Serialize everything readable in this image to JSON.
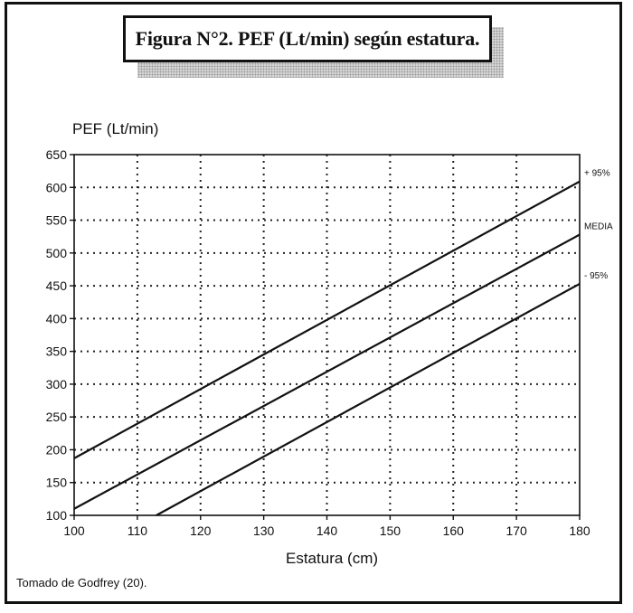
{
  "title": "Figura N°2. PEF (Lt/min) según estatura.",
  "source_note": "Tomado de Godfrey (20).",
  "chart_data": {
    "type": "line",
    "title": "Figura N°2. PEF (Lt/min) según estatura.",
    "xlabel": "Estatura (cm)",
    "ylabel": "PEF (Lt/min)",
    "xlim": [
      100,
      180
    ],
    "ylim": [
      100,
      650
    ],
    "x_ticks": [
      100,
      110,
      120,
      130,
      140,
      150,
      160,
      170,
      180
    ],
    "y_ticks": [
      100,
      150,
      200,
      250,
      300,
      350,
      400,
      450,
      500,
      550,
      600,
      650
    ],
    "grid": true,
    "grid_style": "dotted",
    "series": [
      {
        "name": "+ 95%",
        "x": [
          100,
          180
        ],
        "y": [
          187,
          609
        ]
      },
      {
        "name": "MEDIA",
        "x": [
          100,
          180
        ],
        "y": [
          110,
          528
        ]
      },
      {
        "name": "- 95%",
        "x": [
          113,
          180
        ],
        "y": [
          100,
          453
        ]
      }
    ]
  }
}
